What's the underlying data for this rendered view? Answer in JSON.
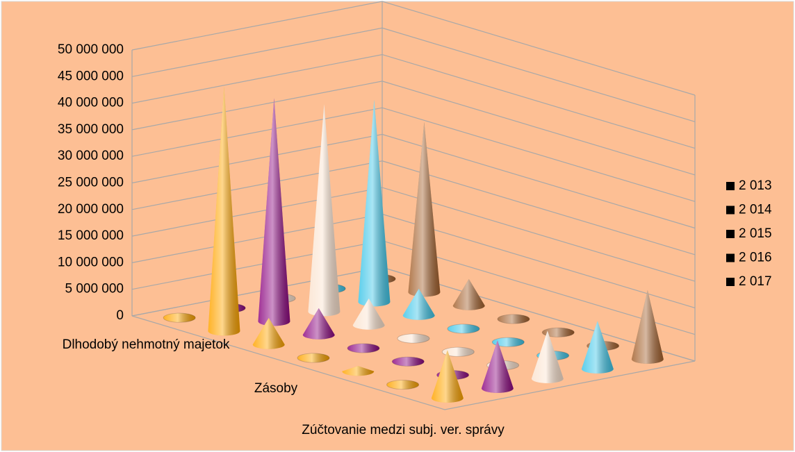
{
  "chart_data": {
    "type": "cone3d",
    "categories": [
      null,
      "Dlhodobý nehmotný majetok",
      null,
      "Zásoby",
      null,
      "Zúčtovanie medzi subj. ver. správy",
      null
    ],
    "series": [
      {
        "name": "2 013",
        "color": "#ffa500",
        "values": [
          0,
          46000000,
          5000000,
          0,
          1000000,
          0,
          9000000
        ]
      },
      {
        "name": "2 014",
        "color": "#8e0a82",
        "values": [
          0,
          42000000,
          5000000,
          0,
          0,
          0,
          9000000
        ]
      },
      {
        "name": "2 015",
        "color": "#fbe3cf",
        "values": [
          0,
          39000000,
          5000000,
          0,
          0,
          0,
          9000000
        ]
      },
      {
        "name": "2 016",
        "color": "#3fc6e8",
        "values": [
          0,
          38000000,
          5000000,
          0,
          0,
          0,
          9000000
        ]
      },
      {
        "name": "2 017",
        "color": "#a5622e",
        "values": [
          0,
          32000000,
          5000000,
          0,
          0,
          0,
          13000000
        ]
      }
    ],
    "ylim": [
      0,
      50000000
    ],
    "yticks": [
      0,
      {
        "value": 5000000,
        "label": "5 000 000"
      },
      {
        "value": 10000000,
        "label": "10 000 000"
      },
      {
        "value": 15000000,
        "label": "15 000 000"
      },
      {
        "value": 20000000,
        "label": "20 000 000"
      },
      {
        "value": 25000000,
        "label": "25 000 000"
      },
      {
        "value": 30000000,
        "label": "30 000 000"
      },
      {
        "value": 35000000,
        "label": "35 000 000"
      },
      {
        "value": 40000000,
        "label": "40 000 000"
      },
      {
        "value": 45000000,
        "label": "45 000 000"
      },
      {
        "value": 50000000,
        "label": "50 000 000"
      }
    ],
    "grid": true,
    "legend": "right"
  }
}
